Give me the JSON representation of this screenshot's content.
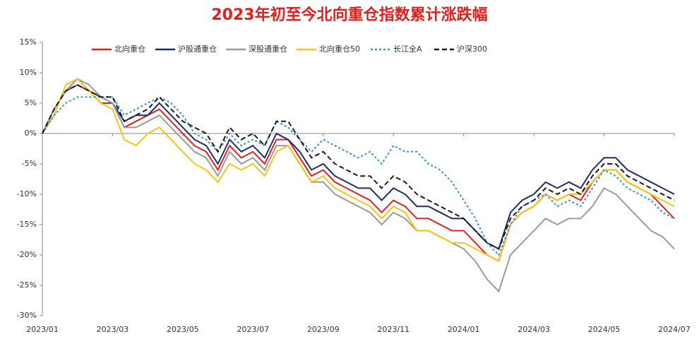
{
  "chart_data": {
    "type": "line",
    "title": "2023年初至今北向重仓指数累计涨跌幅",
    "categories": [
      "2023/01",
      null,
      null,
      null,
      null,
      null,
      "2023/03",
      null,
      null,
      null,
      null,
      null,
      "2023/05",
      null,
      null,
      null,
      null,
      null,
      "2023/07",
      null,
      null,
      null,
      null,
      null,
      "2023/09",
      null,
      null,
      null,
      null,
      null,
      "2023/11",
      null,
      null,
      null,
      null,
      null,
      "2024/01",
      null,
      null,
      null,
      null,
      null,
      "2024/03",
      null,
      null,
      null,
      null,
      null,
      "2024/05",
      null,
      null,
      null,
      null,
      null,
      "2024/07"
    ],
    "series": [
      {
        "name": "北向重仓",
        "color": "#e0201c",
        "dash": "solid",
        "values": [
          0,
          4,
          7,
          8,
          7,
          5,
          5,
          1,
          2,
          3,
          4,
          2,
          0,
          -2,
          -3,
          -6,
          -2,
          -4,
          -3,
          -5,
          -1,
          -1,
          -4,
          -7,
          -6,
          -8,
          -9,
          -10,
          -11,
          -13,
          -11,
          -12,
          -14,
          -14,
          -15,
          -16,
          -16,
          -18,
          -20,
          -21,
          -15,
          -13,
          -12,
          -10,
          -11,
          -10,
          -11,
          -8,
          -6,
          -6,
          -8,
          -9,
          -10,
          -12,
          -14
        ]
      },
      {
        "name": "沪股通重仓",
        "color": "#1f2d6b",
        "dash": "solid",
        "values": [
          0,
          4,
          7,
          9,
          7,
          6,
          5,
          2,
          3,
          3,
          5,
          3,
          1,
          -1,
          -2,
          -5,
          -1,
          -3,
          -2,
          -4,
          0,
          -1,
          -3,
          -6,
          -5,
          -7,
          -8,
          -9,
          -9,
          -11,
          -9,
          -10,
          -12,
          -12,
          -13,
          -14,
          -14,
          -16,
          -18,
          -19,
          -13,
          -11,
          -10,
          -8,
          -9,
          -8,
          -9,
          -6,
          -4,
          -4,
          -6,
          -7,
          -8,
          -9,
          -10
        ]
      },
      {
        "name": "深股通重仓",
        "color": "#9a9a9a",
        "dash": "solid",
        "values": [
          0,
          4,
          7,
          9,
          8,
          6,
          5,
          1,
          1,
          2,
          3,
          1,
          -1,
          -3,
          -4,
          -7,
          -3,
          -5,
          -4,
          -6,
          -2,
          -2,
          -5,
          -8,
          -8,
          -10,
          -11,
          -12,
          -13,
          -15,
          -13,
          -14,
          -16,
          -16,
          -17,
          -18,
          -19,
          -21,
          -24,
          -26,
          -20,
          -18,
          -16,
          -14,
          -15,
          -14,
          -14,
          -12,
          -9,
          -10,
          -12,
          -14,
          -16,
          -17,
          -19
        ]
      },
      {
        "name": "北向重仓50",
        "color": "#f5c518",
        "dash": "solid",
        "values": [
          0,
          3,
          8,
          9,
          7,
          5,
          4,
          -1,
          -2,
          0,
          1,
          -1,
          -3,
          -5,
          -6,
          -8,
          -5,
          -6,
          -5,
          -7,
          -3,
          -2,
          -5,
          -8,
          -7,
          -9,
          -10,
          -11,
          -12,
          -14,
          -12,
          -13,
          -16,
          -16,
          -17,
          -18,
          -18,
          -19,
          -20,
          -21,
          -15,
          -13,
          -12,
          -10,
          -11,
          -10,
          -10,
          -8,
          -6,
          -6,
          -8,
          -9,
          -10,
          -11,
          -12
        ]
      },
      {
        "name": "长江全A",
        "color": "#3a8fd6",
        "dash": "dotted",
        "values": [
          0,
          3,
          5,
          6,
          6,
          6,
          6,
          3,
          4,
          5,
          6,
          5,
          3,
          0,
          -1,
          -3,
          0,
          -2,
          -1,
          -2,
          2,
          1,
          -1,
          -3,
          -1,
          -2,
          -3,
          -4,
          -3,
          -5,
          -2,
          -3,
          -3,
          -5,
          -6,
          -8,
          -11,
          -14,
          -18,
          -20,
          -15,
          -12,
          -11,
          -10,
          -12,
          -11,
          -12,
          -9,
          -6,
          -7,
          -9,
          -10,
          -11,
          -13,
          -14
        ]
      },
      {
        "name": "沪深300",
        "color": "#1a1a1a",
        "dash": "dashed",
        "values": [
          0,
          4,
          7,
          8,
          7,
          6,
          6,
          2,
          3,
          4,
          6,
          4,
          2,
          1,
          0,
          -3,
          1,
          -1,
          0,
          -2,
          2,
          2,
          -1,
          -4,
          -3,
          -5,
          -6,
          -7,
          -7,
          -9,
          -7,
          -8,
          -10,
          -11,
          -12,
          -13,
          -14,
          -16,
          -18,
          -19,
          -14,
          -12,
          -11,
          -9,
          -10,
          -9,
          -10,
          -7,
          -5,
          -5,
          -7,
          -8,
          -9,
          -10,
          -11
        ]
      }
    ],
    "ylim": [
      -30,
      15
    ],
    "yticks": [
      {
        "value": -30,
        "label": "-30%"
      },
      {
        "value": -25,
        "label": "-25%"
      },
      {
        "value": -20,
        "label": "-20%"
      },
      {
        "value": -15,
        "label": "-15%"
      },
      {
        "value": -10,
        "label": "-10%"
      },
      {
        "value": -5,
        "label": "-5%"
      },
      {
        "value": 0,
        "label": "0%"
      },
      {
        "value": 5,
        "label": "5%"
      },
      {
        "value": 10,
        "label": "10%"
      },
      {
        "value": 15,
        "label": "15%"
      }
    ],
    "grid": false,
    "legend": "top"
  }
}
